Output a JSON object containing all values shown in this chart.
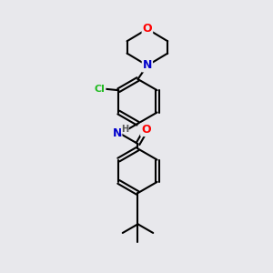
{
  "bg_color": "#e8e8ec",
  "bond_color": "#000000",
  "bond_width": 1.5,
  "atom_colors": {
    "O": "#ff0000",
    "N": "#0000cc",
    "Cl": "#22bb22",
    "H": "#555555",
    "C": "#000000"
  },
  "font_size_large": 9,
  "font_size_small": 8
}
